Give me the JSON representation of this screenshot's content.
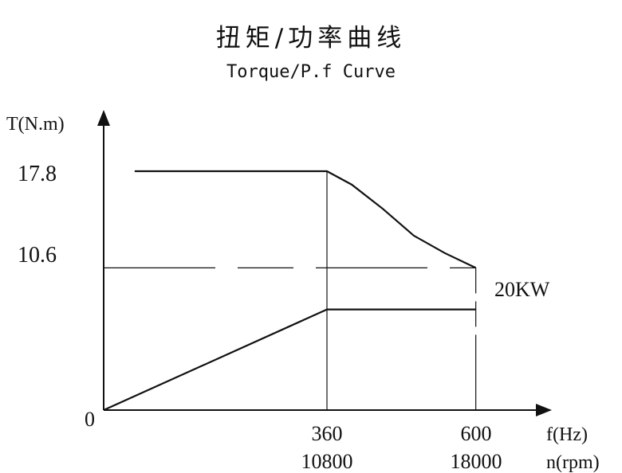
{
  "chart_data": {
    "type": "line",
    "title": "扭矩/功率曲线",
    "subtitle": "Torque/P.f Curve",
    "ylabel": "T(N.m)",
    "xlabel_f": "f(Hz)",
    "xlabel_n": "n(rpm)",
    "origin_label": "0",
    "x_ticks": [
      {
        "f": "360",
        "n": "10800"
      },
      {
        "f": "600",
        "n": "18000"
      }
    ],
    "y_ticks": [
      "17.8",
      "10.6"
    ],
    "xlim": [
      0,
      720
    ],
    "ylim": [
      0,
      22
    ],
    "series": [
      {
        "name": "torque",
        "points": [
          [
            50,
            17.8
          ],
          [
            360,
            17.8
          ],
          [
            400,
            16.8
          ],
          [
            450,
            15.0
          ],
          [
            500,
            13.0
          ],
          [
            550,
            11.7
          ],
          [
            600,
            10.6
          ]
        ]
      },
      {
        "name": "power",
        "label": "20KW",
        "points": [
          [
            0,
            0
          ],
          [
            360,
            7.5
          ],
          [
            600,
            7.5
          ]
        ]
      }
    ],
    "reference_line_y": 10.6,
    "vertical_refs": [
      360,
      600
    ]
  }
}
